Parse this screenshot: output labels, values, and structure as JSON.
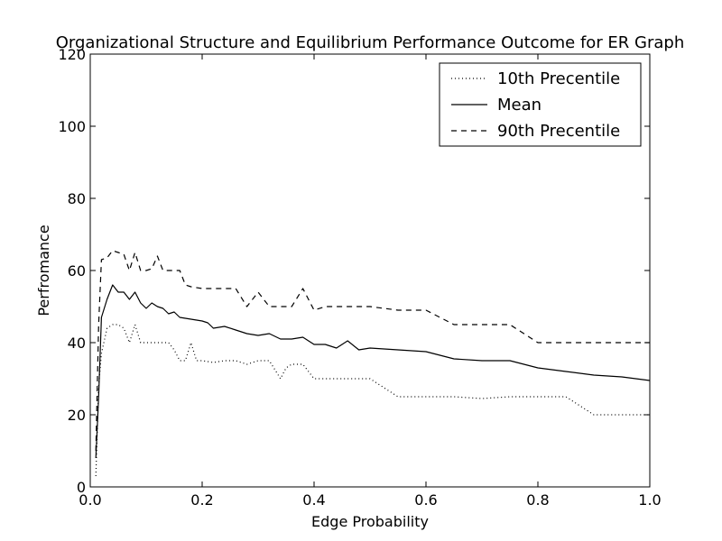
{
  "chart_data": {
    "type": "line",
    "title": "Organizational Structure and Equilibrium Performance Outcome for ER Graph",
    "xlabel": "Edge Probability",
    "ylabel": "Perfromance",
    "xlim": [
      0.0,
      1.0
    ],
    "ylim": [
      0,
      120
    ],
    "xticks": [
      0.0,
      0.2,
      0.4,
      0.6,
      0.8,
      1.0
    ],
    "xtick_labels": [
      "0.0",
      "0.2",
      "0.4",
      "0.6",
      "0.8",
      "1.0"
    ],
    "yticks": [
      0,
      20,
      40,
      60,
      80,
      100,
      120
    ],
    "ytick_labels": [
      "0",
      "20",
      "40",
      "60",
      "80",
      "100",
      "120"
    ],
    "grid": false,
    "legend_position": "top-right",
    "series": [
      {
        "name": "10th Precentile",
        "style": "dotted",
        "x": [
          0.01,
          0.015,
          0.02,
          0.03,
          0.04,
          0.05,
          0.06,
          0.07,
          0.08,
          0.09,
          0.1,
          0.12,
          0.14,
          0.15,
          0.16,
          0.17,
          0.18,
          0.19,
          0.2,
          0.22,
          0.24,
          0.26,
          0.28,
          0.3,
          0.32,
          0.34,
          0.35,
          0.36,
          0.38,
          0.4,
          0.42,
          0.45,
          0.5,
          0.52,
          0.55,
          0.6,
          0.65,
          0.7,
          0.75,
          0.8,
          0.85,
          0.9,
          0.95,
          1.0
        ],
        "y": [
          3,
          28,
          37,
          44,
          45,
          45,
          44,
          40,
          45,
          40,
          40,
          40,
          40,
          38,
          35,
          35,
          40,
          35,
          35,
          34.5,
          35,
          35,
          34,
          35,
          35,
          30,
          33,
          34,
          34,
          30,
          30,
          30,
          30,
          28,
          25,
          25,
          25,
          24.5,
          25,
          25,
          25,
          20,
          20,
          20
        ]
      },
      {
        "name": "Mean",
        "style": "solid",
        "x": [
          0.01,
          0.015,
          0.02,
          0.03,
          0.04,
          0.05,
          0.06,
          0.07,
          0.08,
          0.09,
          0.1,
          0.11,
          0.12,
          0.13,
          0.14,
          0.15,
          0.16,
          0.18,
          0.2,
          0.21,
          0.22,
          0.24,
          0.26,
          0.28,
          0.3,
          0.32,
          0.34,
          0.36,
          0.38,
          0.4,
          0.42,
          0.44,
          0.46,
          0.48,
          0.5,
          0.55,
          0.6,
          0.65,
          0.7,
          0.75,
          0.8,
          0.85,
          0.9,
          0.95,
          1.0
        ],
        "y": [
          8,
          25,
          47,
          52,
          56,
          54,
          54,
          52,
          54,
          51,
          49.5,
          51,
          50,
          49.5,
          48,
          48.5,
          47,
          46.5,
          46,
          45.5,
          44,
          44.5,
          43.5,
          42.5,
          42,
          42.5,
          41,
          41,
          41.5,
          39.5,
          39.5,
          38.5,
          40.5,
          38,
          38.5,
          38,
          37.5,
          35.5,
          35,
          35,
          33,
          32,
          31,
          30.5,
          29.5
        ]
      },
      {
        "name": "90th Precentile",
        "style": "dashed",
        "x": [
          0.01,
          0.015,
          0.02,
          0.03,
          0.04,
          0.05,
          0.06,
          0.07,
          0.08,
          0.09,
          0.1,
          0.11,
          0.12,
          0.13,
          0.14,
          0.15,
          0.16,
          0.17,
          0.18,
          0.2,
          0.22,
          0.24,
          0.26,
          0.28,
          0.3,
          0.32,
          0.34,
          0.36,
          0.38,
          0.4,
          0.42,
          0.45,
          0.5,
          0.55,
          0.6,
          0.65,
          0.7,
          0.75,
          0.8,
          0.85,
          0.9,
          0.95,
          1.0
        ],
        "y": [
          10,
          45,
          63,
          63.5,
          65.5,
          65,
          64.5,
          60,
          65,
          60,
          60,
          60.5,
          64,
          60,
          60,
          60,
          60,
          56,
          55.5,
          55,
          55,
          55,
          55,
          50,
          54,
          50,
          50,
          50,
          55,
          49,
          50,
          50,
          50,
          49,
          49,
          45,
          45,
          45,
          40,
          40,
          40,
          40,
          40
        ]
      }
    ]
  }
}
